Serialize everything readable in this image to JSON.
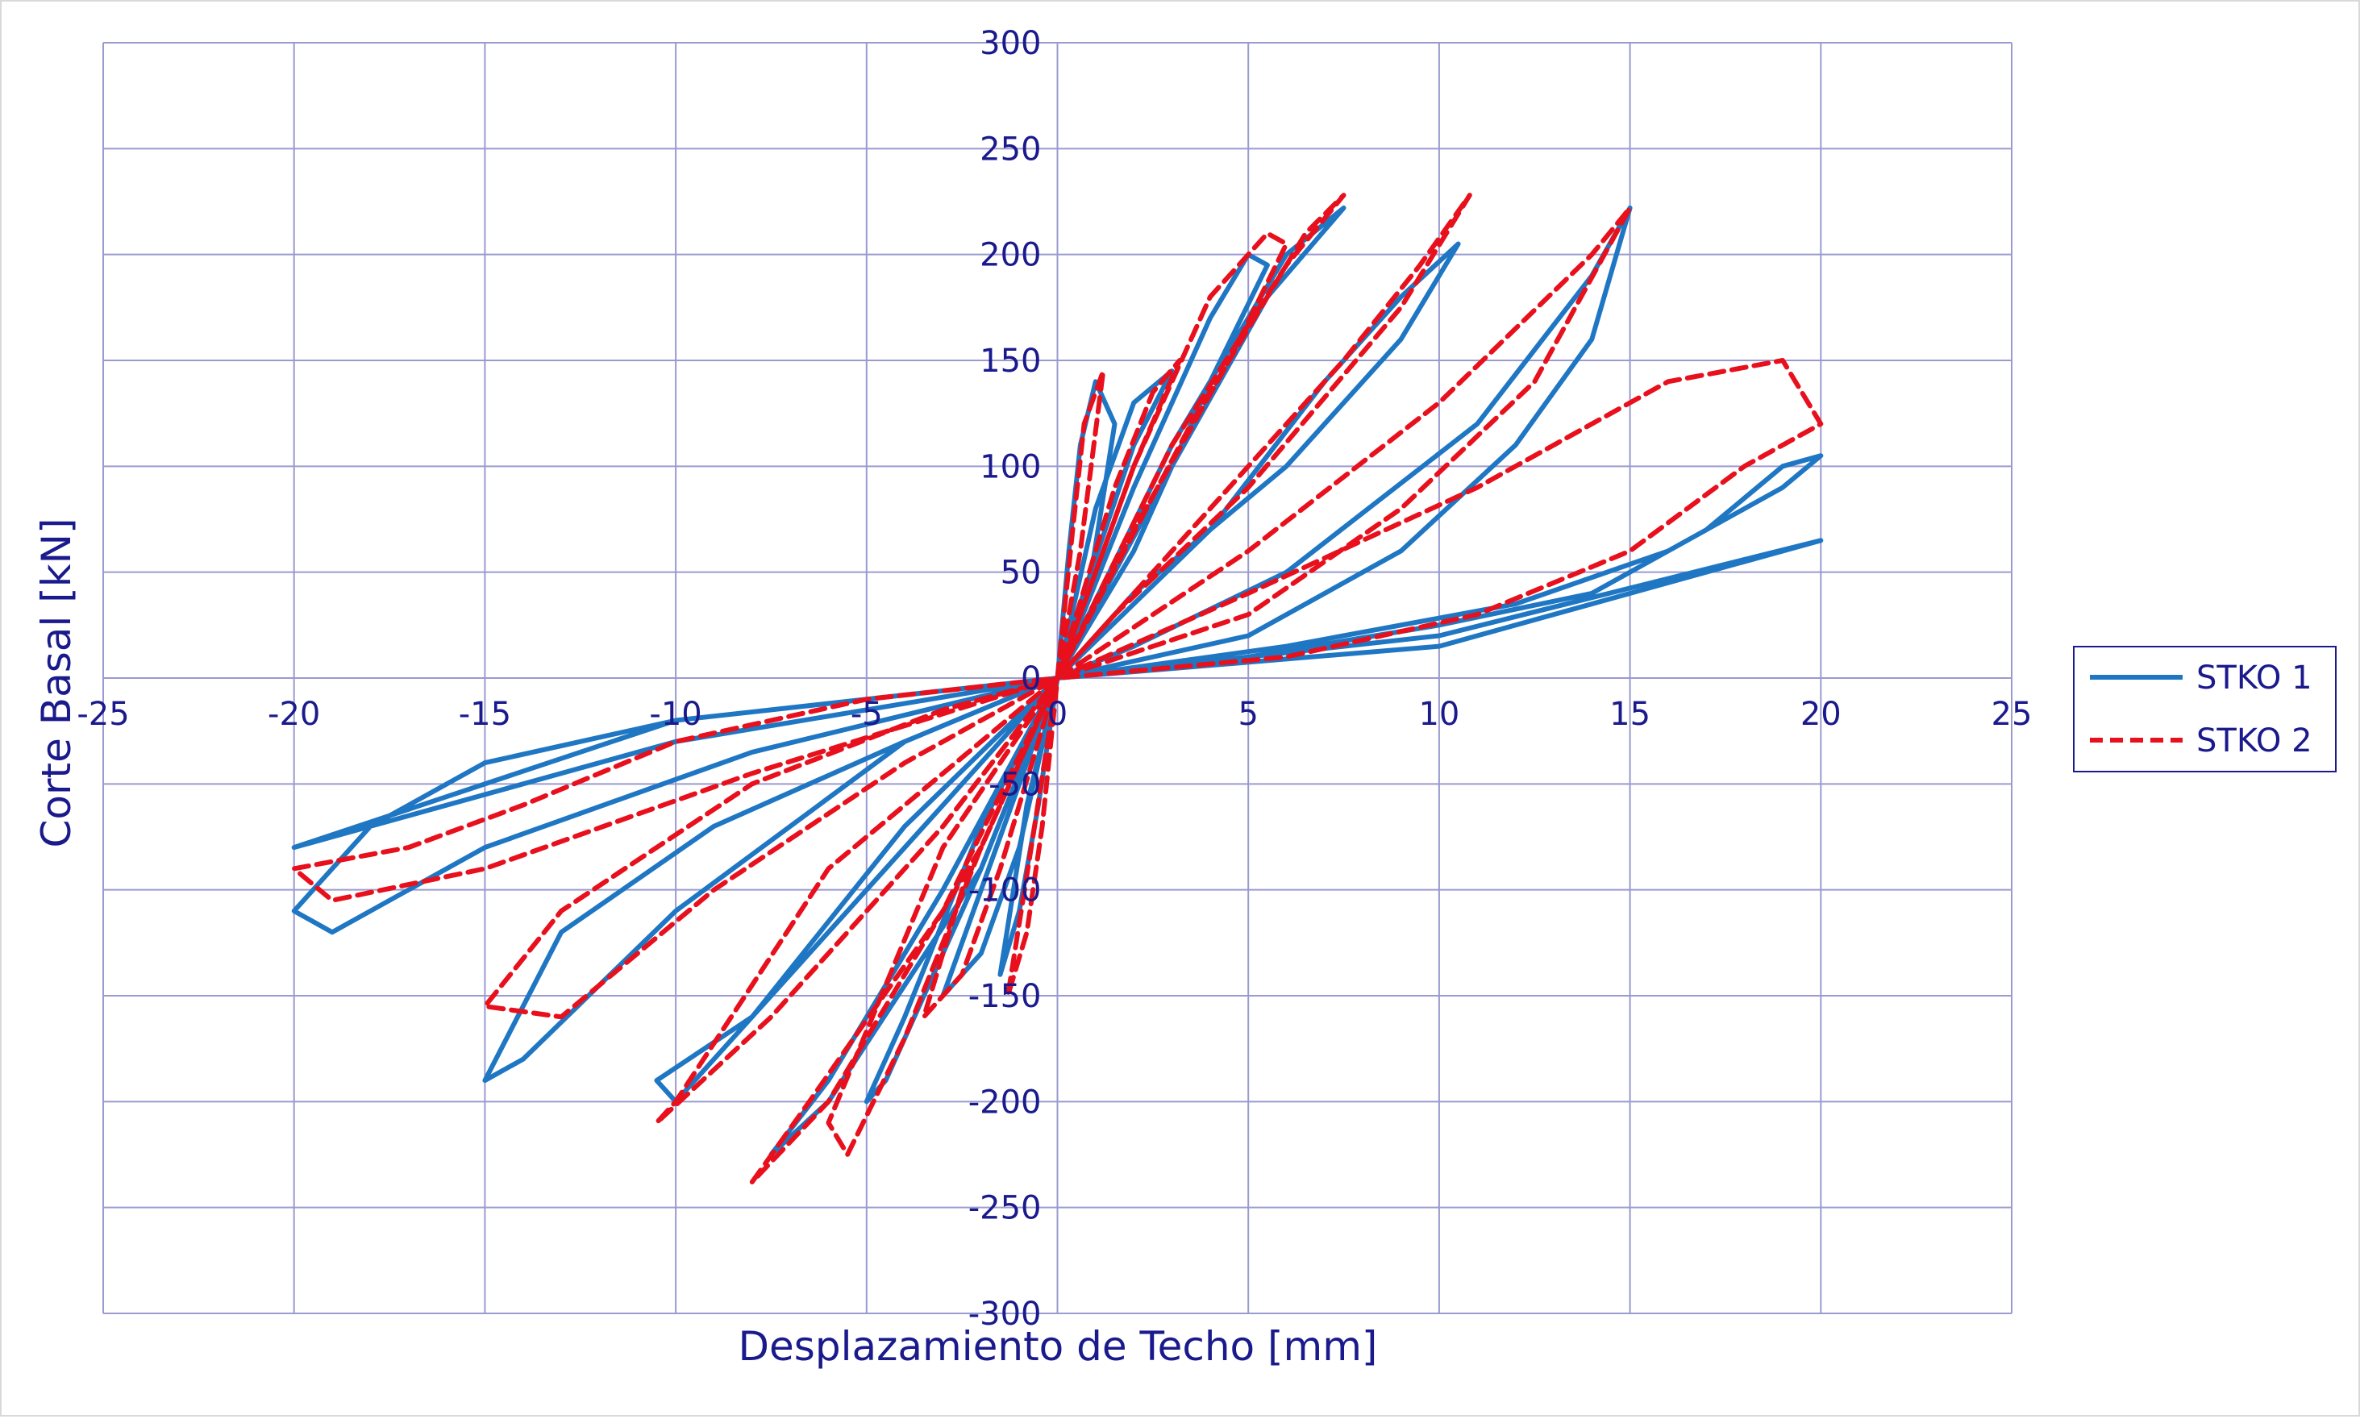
{
  "chart_data": {
    "type": "line",
    "title": "",
    "xlabel": "Desplazamiento de Techo [mm]",
    "ylabel": "Corte Basal [kN]",
    "xlim": [
      -25,
      25
    ],
    "ylim": [
      -300,
      300
    ],
    "xticks": [
      -25,
      -20,
      -15,
      -10,
      -5,
      0,
      5,
      10,
      15,
      20,
      25
    ],
    "yticks": [
      300,
      250,
      200,
      150,
      100,
      50,
      0,
      -50,
      -100,
      -150,
      -200,
      -250,
      -300
    ],
    "grid": true,
    "legend_position": "right",
    "colors": {
      "axes": "#1a1a8c",
      "grid": "#9a9ad0"
    },
    "series": [
      {
        "name": "STKO 1",
        "color": "#1f77c4",
        "dash": "solid",
        "x": [
          0,
          0.3,
          0.6,
          1.0,
          1.5,
          0.8,
          0,
          -0.5,
          -1.0,
          -1.5,
          -0.8,
          0,
          0,
          1.0,
          2.0,
          3.0,
          2.0,
          0.5,
          0,
          -1.0,
          -2.0,
          -3.0,
          -2.0,
          0,
          0,
          2.0,
          4.0,
          5.0,
          5.5,
          4.0,
          2.0,
          0,
          -2.0,
          -4.0,
          -5.0,
          -4.5,
          -2.0,
          0,
          0,
          3.0,
          5.5,
          7.5,
          6.0,
          3.0,
          0,
          -3.0,
          -6.0,
          -7.5,
          -6.0,
          -2.0,
          0,
          0,
          4.0,
          7.0,
          9.0,
          10.5,
          9.0,
          6.0,
          2.0,
          0,
          -3.0,
          -7.0,
          -10.0,
          -10.5,
          -8.0,
          -4.0,
          0,
          0,
          5.0,
          9.0,
          12.0,
          14.0,
          15.0,
          14.0,
          11.0,
          6.0,
          2.0,
          0,
          -4.0,
          -9.0,
          -13.0,
          -15.0,
          -14.0,
          -10.0,
          -4.0,
          0,
          0,
          5.0,
          10.0,
          14.0,
          17.0,
          19.0,
          20.0,
          19.0,
          16.0,
          12.0,
          6.0,
          0,
          -5.0,
          -10.0,
          -15.0,
          -18.0,
          -20.0,
          -19.0,
          -15.0,
          -8.0,
          0,
          0,
          10.0,
          20.0,
          10.0,
          0,
          -10.0,
          -20.0,
          -10.0,
          0
        ],
        "y": [
          0,
          60,
          110,
          140,
          120,
          40,
          0,
          -60,
          -110,
          -140,
          -60,
          0,
          0,
          80,
          130,
          145,
          110,
          30,
          0,
          -80,
          -130,
          -150,
          -100,
          0,
          0,
          90,
          170,
          200,
          195,
          140,
          60,
          0,
          -70,
          -160,
          -200,
          -190,
          -90,
          0,
          0,
          100,
          180,
          222,
          200,
          110,
          0,
          -100,
          -190,
          -225,
          -200,
          -90,
          0,
          0,
          70,
          140,
          180,
          205,
          160,
          100,
          40,
          0,
          -60,
          -140,
          -200,
          -190,
          -160,
          -70,
          0,
          0,
          20,
          60,
          110,
          160,
          222,
          190,
          120,
          50,
          15,
          0,
          -30,
          -70,
          -120,
          -190,
          -180,
          -110,
          -30,
          0,
          0,
          10,
          25,
          40,
          70,
          100,
          105,
          90,
          60,
          35,
          15,
          0,
          -10,
          -20,
          -40,
          -70,
          -110,
          -120,
          -80,
          -35,
          0,
          0,
          15,
          65,
          20,
          0,
          -20,
          -80,
          -30,
          0
        ]
      },
      {
        "name": "STKO 2",
        "color": "#e8101c",
        "dash": "dashed",
        "x": [
          0,
          0.4,
          0.7,
          1.2,
          0.6,
          0,
          -0.4,
          -0.8,
          -1.3,
          -0.6,
          0,
          0,
          1.5,
          2.5,
          3.2,
          2.0,
          0.4,
          0,
          -1.5,
          -2.5,
          -3.5,
          -2.5,
          0,
          0,
          2.0,
          4.0,
          5.5,
          6.0,
          4.5,
          2.0,
          0,
          -2.0,
          -4.0,
          -5.5,
          -6.0,
          -3.0,
          0,
          0,
          3.0,
          6.0,
          7.5,
          6.5,
          3.5,
          0,
          -3.0,
          -6.5,
          -8.0,
          -6.0,
          -2.0,
          0,
          0,
          4.0,
          7.5,
          9.5,
          10.8,
          9.0,
          5.0,
          1.5,
          0,
          -3.0,
          -7.5,
          -10.5,
          -10.0,
          -6.0,
          0,
          0,
          5.0,
          9.0,
          12.5,
          15.0,
          14.0,
          10.0,
          5.0,
          0,
          -4.0,
          -9.0,
          -13.0,
          -15.0,
          -13.0,
          -8.0,
          -3.0,
          0,
          0,
          6.0,
          11.0,
          15.0,
          18.0,
          20.0,
          19.0,
          16.0,
          11.0,
          5.0,
          0,
          -5.0,
          -10.0,
          -14.0,
          -17.0,
          -20.0,
          -19.0,
          -15.0,
          -8.0,
          0
        ],
        "y": [
          0,
          70,
          120,
          145,
          60,
          0,
          -70,
          -120,
          -150,
          -70,
          0,
          0,
          90,
          135,
          150,
          100,
          20,
          0,
          -90,
          -140,
          -160,
          -100,
          0,
          0,
          100,
          180,
          210,
          205,
          150,
          70,
          0,
          -80,
          -170,
          -225,
          -210,
          -80,
          0,
          0,
          110,
          195,
          228,
          210,
          120,
          0,
          -110,
          -200,
          -238,
          -200,
          -80,
          0,
          0,
          80,
          150,
          195,
          228,
          175,
          90,
          30,
          0,
          -70,
          -160,
          -210,
          -200,
          -90,
          0,
          0,
          30,
          80,
          140,
          222,
          200,
          130,
          60,
          0,
          -40,
          -100,
          -160,
          -155,
          -110,
          -50,
          -15,
          0,
          0,
          10,
          30,
          60,
          100,
          120,
          150,
          140,
          90,
          40,
          0,
          -10,
          -30,
          -60,
          -80,
          -90,
          -105,
          -90,
          -45,
          0
        ]
      }
    ]
  }
}
